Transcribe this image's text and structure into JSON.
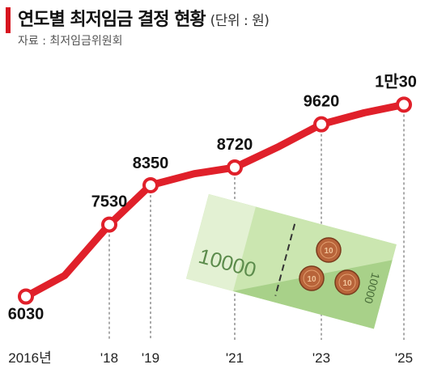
{
  "header": {
    "title": "연도별 최저임금 결정 현황",
    "unit": "(단위 : 원)",
    "source": "자료 : 최저임금위원회"
  },
  "banknote": {
    "label": "10000",
    "label_rotated": "10000",
    "coin_label": "10"
  },
  "colors": {
    "accent": "#d7141f",
    "line": "#e0202a"
  },
  "chart_data": {
    "type": "line",
    "title": "연도별 최저임금 결정 현황",
    "xlabel": "",
    "ylabel": "",
    "x_ticks": [
      "2016년",
      "'18",
      "'19",
      "'21",
      "'23",
      "'25"
    ],
    "points": [
      {
        "x": 2016,
        "y": 6030,
        "label": "6030"
      },
      {
        "x": 2017,
        "y": 6470,
        "label": ""
      },
      {
        "x": 2018,
        "y": 7530,
        "label": "7530"
      },
      {
        "x": 2019,
        "y": 8350,
        "label": "8350"
      },
      {
        "x": 2020,
        "y": 8590,
        "label": ""
      },
      {
        "x": 2021,
        "y": 8720,
        "label": "8720"
      },
      {
        "x": 2022,
        "y": 9160,
        "label": ""
      },
      {
        "x": 2023,
        "y": 9620,
        "label": "9620"
      },
      {
        "x": 2024,
        "y": 9860,
        "label": ""
      },
      {
        "x": 2025,
        "y": 10030,
        "label": "1만30"
      }
    ],
    "marked_years": [
      2016,
      2018,
      2019,
      2021,
      2023,
      2025
    ],
    "grid": "dashed vertical drop lines at marked years"
  }
}
